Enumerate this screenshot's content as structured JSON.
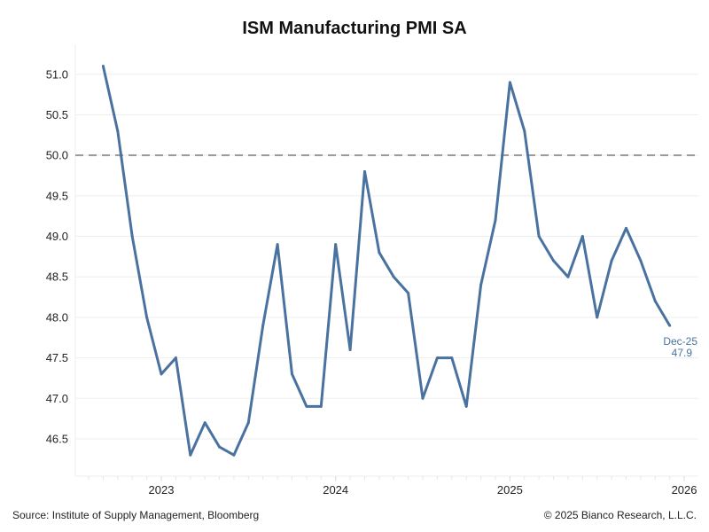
{
  "chart_data": {
    "type": "line",
    "title": "ISM Manufacturing PMI SA",
    "xlabel": "",
    "ylabel": "",
    "ylim": [
      46.04,
      51.37
    ],
    "yticks": [
      "46.5",
      "47.0",
      "47.5",
      "48.0",
      "48.5",
      "49.0",
      "49.5",
      "50.0",
      "50.5",
      "51.0"
    ],
    "xticks": [
      "2023",
      "2024",
      "2025",
      "2026"
    ],
    "grid": true,
    "reference_line": {
      "value": 50.0,
      "style": "dashed",
      "color": "#999999"
    },
    "line_color": "#4a72a0",
    "series": [
      {
        "name": "ISM Manufacturing PMI SA",
        "x": [
          "Sep-22",
          "Oct-22",
          "Nov-22",
          "Dec-22",
          "Jan-23",
          "Feb-23",
          "Mar-23",
          "Apr-23",
          "May-23",
          "Jun-23",
          "Jul-23",
          "Aug-23",
          "Sep-23",
          "Oct-23",
          "Nov-23",
          "Dec-23",
          "Jan-24",
          "Feb-24",
          "Mar-24",
          "Apr-24",
          "May-24",
          "Jun-24",
          "Jul-24",
          "Aug-24",
          "Sep-24",
          "Oct-24",
          "Nov-24",
          "Dec-24",
          "Jan-25",
          "Feb-25",
          "Mar-25",
          "Apr-25",
          "May-25",
          "Jun-25",
          "Jul-25",
          "Aug-25",
          "Sep-25",
          "Oct-25",
          "Nov-25",
          "Dec-25"
        ],
        "values": [
          51.1,
          50.3,
          49.0,
          48.0,
          47.3,
          47.5,
          46.3,
          46.7,
          46.4,
          46.3,
          46.7,
          47.9,
          48.9,
          47.3,
          46.9,
          46.9,
          48.9,
          47.6,
          49.8,
          48.8,
          48.5,
          48.3,
          47.0,
          47.5,
          47.5,
          46.9,
          48.4,
          49.2,
          50.9,
          50.3,
          49.0,
          48.7,
          48.5,
          49.0,
          48.0,
          48.7,
          49.1,
          48.7,
          48.2,
          47.9
        ]
      }
    ],
    "last_label": {
      "date": "Dec-25",
      "value": "47.9"
    }
  },
  "footer": {
    "source": "Source: Institute of Supply Management, Bloomberg",
    "copyright": "© 2025 Bianco Research, L.L.C."
  }
}
